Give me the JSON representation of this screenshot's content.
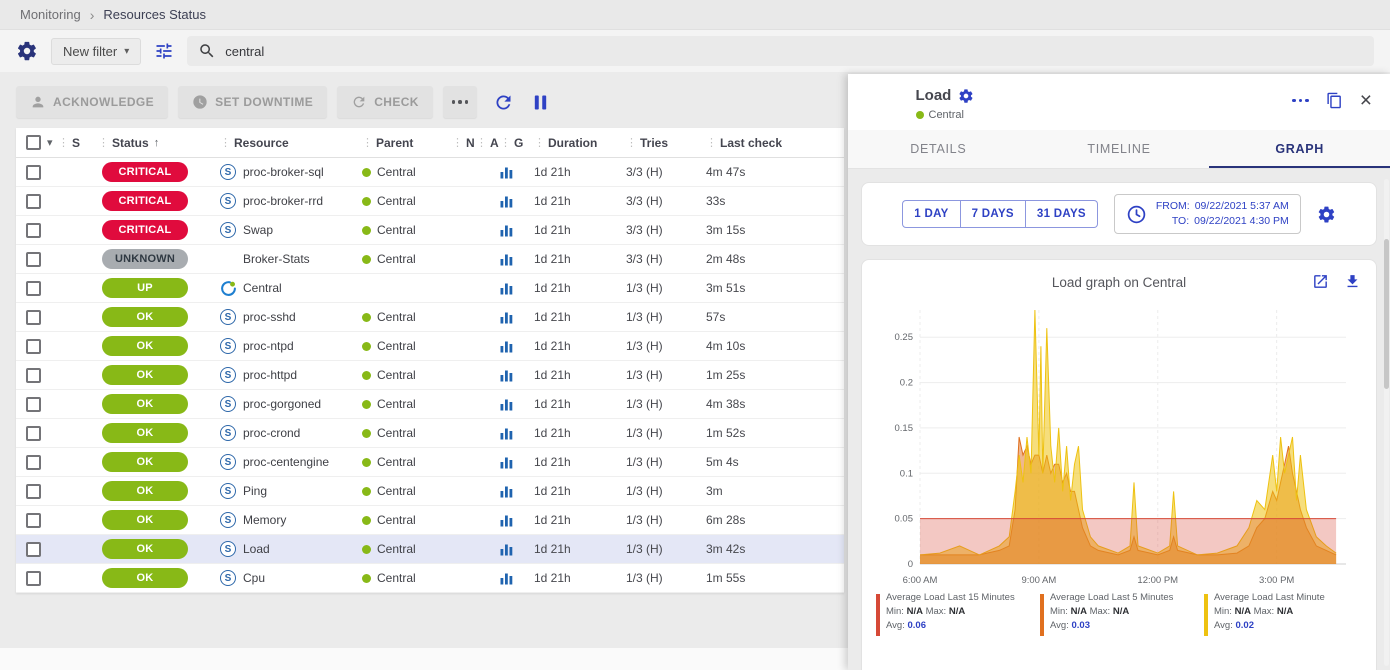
{
  "colors": {
    "ui": {
      "accent": "#2e41c4",
      "navy": "#29337a",
      "selected-row": "#e4e7f6"
    },
    "status": {
      "CRITICAL": {
        "bg": "#e00b3d",
        "fg": "#ffffff"
      },
      "UNKNOWN": {
        "bg": "#a8acb0",
        "fg": "#2f3942"
      },
      "UP": {
        "bg": "#88b917",
        "fg": "#ffffff"
      },
      "OK": {
        "bg": "#88b917",
        "fg": "#ffffff"
      }
    }
  },
  "breadcrumb": {
    "items": [
      "Monitoring",
      "Resources Status"
    ],
    "separator": "›"
  },
  "filter_bar": {
    "new_filter_label": "New filter",
    "caret": "▾",
    "search_value": "central"
  },
  "toolbar": {
    "acknowledge_label": "ACKNOWLEDGE",
    "set_downtime_label": "SET DOWNTIME",
    "check_label": "CHECK"
  },
  "table": {
    "col_menu_icon": "⋮",
    "sort_icon": "↑",
    "select_caret": "▾",
    "headers": {
      "s": "S",
      "status": "Status",
      "resource": "Resource",
      "parent": "Parent",
      "n": "N",
      "a": "A",
      "g": "G",
      "duration": "Duration",
      "tries": "Tries",
      "last_check": "Last check"
    },
    "rows": [
      {
        "status": "CRITICAL",
        "type": "S",
        "resource": "proc-broker-sql",
        "parent": "Central",
        "duration": "1d 21h",
        "tries": "3/3 (H)",
        "last_check": "4m 47s"
      },
      {
        "status": "CRITICAL",
        "type": "S",
        "resource": "proc-broker-rrd",
        "parent": "Central",
        "duration": "1d 21h",
        "tries": "3/3 (H)",
        "last_check": "33s"
      },
      {
        "status": "CRITICAL",
        "type": "S",
        "resource": "Swap",
        "parent": "Central",
        "duration": "1d 21h",
        "tries": "3/3 (H)",
        "last_check": "3m 15s"
      },
      {
        "status": "UNKNOWN",
        "type": null,
        "resource": "Broker-Stats",
        "parent": "Central",
        "duration": "1d 21h",
        "tries": "3/3 (H)",
        "last_check": "2m 48s"
      },
      {
        "status": "UP",
        "type": "H",
        "resource": "Central",
        "parent": null,
        "duration": "1d 21h",
        "tries": "1/3 (H)",
        "last_check": "3m 51s"
      },
      {
        "status": "OK",
        "type": "S",
        "resource": "proc-sshd",
        "parent": "Central",
        "duration": "1d 21h",
        "tries": "1/3 (H)",
        "last_check": "57s"
      },
      {
        "status": "OK",
        "type": "S",
        "resource": "proc-ntpd",
        "parent": "Central",
        "duration": "1d 21h",
        "tries": "1/3 (H)",
        "last_check": "4m 10s"
      },
      {
        "status": "OK",
        "type": "S",
        "resource": "proc-httpd",
        "parent": "Central",
        "duration": "1d 21h",
        "tries": "1/3 (H)",
        "last_check": "1m 25s"
      },
      {
        "status": "OK",
        "type": "S",
        "resource": "proc-gorgoned",
        "parent": "Central",
        "duration": "1d 21h",
        "tries": "1/3 (H)",
        "last_check": "4m 38s"
      },
      {
        "status": "OK",
        "type": "S",
        "resource": "proc-crond",
        "parent": "Central",
        "duration": "1d 21h",
        "tries": "1/3 (H)",
        "last_check": "1m 52s"
      },
      {
        "status": "OK",
        "type": "S",
        "resource": "proc-centengine",
        "parent": "Central",
        "duration": "1d 21h",
        "tries": "1/3 (H)",
        "last_check": "5m 4s"
      },
      {
        "status": "OK",
        "type": "S",
        "resource": "Ping",
        "parent": "Central",
        "duration": "1d 21h",
        "tries": "1/3 (H)",
        "last_check": "3m"
      },
      {
        "status": "OK",
        "type": "S",
        "resource": "Memory",
        "parent": "Central",
        "duration": "1d 21h",
        "tries": "1/3 (H)",
        "last_check": "6m 28s"
      },
      {
        "status": "OK",
        "type": "S",
        "resource": "Load",
        "parent": "Central",
        "duration": "1d 21h",
        "tries": "1/3 (H)",
        "last_check": "3m 42s",
        "selected": true
      },
      {
        "status": "OK",
        "type": "S",
        "resource": "Cpu",
        "parent": "Central",
        "duration": "1d 21h",
        "tries": "1/3 (H)",
        "last_check": "1m 55s"
      }
    ]
  },
  "panel": {
    "status": "OK",
    "title": "Load",
    "parent": "Central",
    "close_icon": "×",
    "tabs": {
      "details": "DETAILS",
      "timeline": "TIMELINE",
      "graph": "GRAPH"
    },
    "range_buttons": {
      "day1": "1 DAY",
      "day7": "7 DAYS",
      "day31": "31 DAYS"
    },
    "from_label": "FROM:",
    "from_value": "09/22/2021 5:37 AM",
    "to_label": "TO:",
    "to_value": "09/22/2021 4:30 PM"
  },
  "legend_labels": {
    "min": "Min:",
    "max": "Max:",
    "avg": "Avg:"
  },
  "chart_data": {
    "type": "area",
    "title": "Load graph on Central",
    "xlabel": "",
    "ylabel": "",
    "xlim": [
      6,
      16.75
    ],
    "ylim": [
      0,
      0.28
    ],
    "grid": true,
    "legend_position": "bottom",
    "y_ticks": [
      {
        "value": 0,
        "label": "0"
      },
      {
        "value": 0.05,
        "label": "0.05"
      },
      {
        "value": 0.1,
        "label": "0.1"
      },
      {
        "value": 0.15,
        "label": "0.15"
      },
      {
        "value": 0.2,
        "label": "0.2"
      },
      {
        "value": 0.25,
        "label": "0.25"
      }
    ],
    "x_ticks": [
      {
        "value": 6,
        "label": "6:00 AM"
      },
      {
        "value": 9,
        "label": "9:00 AM"
      },
      {
        "value": 12,
        "label": "12:00 PM"
      },
      {
        "value": 15,
        "label": "3:00 PM"
      }
    ],
    "x": [
      6,
      6.5,
      7,
      7.5,
      8,
      8.25,
      8.4,
      8.5,
      8.6,
      8.7,
      8.8,
      8.9,
      9,
      9.05,
      9.1,
      9.2,
      9.3,
      9.4,
      9.5,
      9.6,
      9.7,
      9.8,
      9.9,
      10,
      10.1,
      10.3,
      10.5,
      11,
      11.3,
      11.4,
      11.5,
      12,
      12.3,
      12.4,
      12.5,
      13,
      13.5,
      14,
      14.3,
      14.5,
      14.7,
      14.9,
      15,
      15.1,
      15.2,
      15.3,
      15.4,
      15.5,
      15.6,
      15.75,
      16,
      16.25,
      16.5
    ],
    "draw_order": [
      1,
      2,
      0
    ],
    "series": [
      {
        "name": "Average Load Last 15 Minutes",
        "color": "#d64937",
        "fill_opacity": 0.3,
        "min": "N/A",
        "max": "N/A",
        "avg": "0.06",
        "values": [
          0.05,
          0.05,
          0.05,
          0.05,
          0.05,
          0.05,
          0.05,
          0.05,
          0.05,
          0.05,
          0.05,
          0.05,
          0.05,
          0.05,
          0.05,
          0.05,
          0.05,
          0.05,
          0.05,
          0.05,
          0.05,
          0.05,
          0.05,
          0.05,
          0.05,
          0.05,
          0.05,
          0.05,
          0.05,
          0.05,
          0.05,
          0.05,
          0.05,
          0.05,
          0.05,
          0.05,
          0.05,
          0.05,
          0.05,
          0.05,
          0.05,
          0.05,
          0.05,
          0.05,
          0.05,
          0.05,
          0.05,
          0.05,
          0.05,
          0.05,
          0.05,
          0.05,
          0.05
        ]
      },
      {
        "name": "Average Load Last 5 Minutes",
        "color": "#e0701f",
        "fill_opacity": 0.5,
        "min": "N/A",
        "max": "N/A",
        "avg": "0.03",
        "values": [
          0.01,
          0.01,
          0.01,
          0.01,
          0.015,
          0.02,
          0.06,
          0.14,
          0.12,
          0.13,
          0.11,
          0.12,
          0.12,
          0.11,
          0.1,
          0.12,
          0.1,
          0.11,
          0.11,
          0.09,
          0.1,
          0.08,
          0.08,
          0.06,
          0.04,
          0.02,
          0.015,
          0.01,
          0.015,
          0.03,
          0.015,
          0.01,
          0.015,
          0.03,
          0.015,
          0.01,
          0.01,
          0.012,
          0.02,
          0.04,
          0.05,
          0.08,
          0.07,
          0.09,
          0.11,
          0.13,
          0.1,
          0.08,
          0.06,
          0.04,
          0.02,
          0.015,
          0.01
        ]
      },
      {
        "name": "Average Load Last Minute",
        "color": "#eec211",
        "fill_opacity": 0.55,
        "min": "N/A",
        "max": "N/A",
        "avg": "0.02",
        "values": [
          0.01,
          0.012,
          0.02,
          0.01,
          0.02,
          0.03,
          0.08,
          0.12,
          0.09,
          0.14,
          0.1,
          0.28,
          0.12,
          0.24,
          0.1,
          0.26,
          0.13,
          0.09,
          0.15,
          0.08,
          0.13,
          0.07,
          0.11,
          0.13,
          0.06,
          0.03,
          0.02,
          0.012,
          0.02,
          0.09,
          0.02,
          0.012,
          0.02,
          0.08,
          0.02,
          0.01,
          0.012,
          0.02,
          0.04,
          0.07,
          0.06,
          0.12,
          0.08,
          0.14,
          0.1,
          0.12,
          0.14,
          0.07,
          0.12,
          0.06,
          0.03,
          0.02,
          0.012
        ]
      }
    ]
  }
}
